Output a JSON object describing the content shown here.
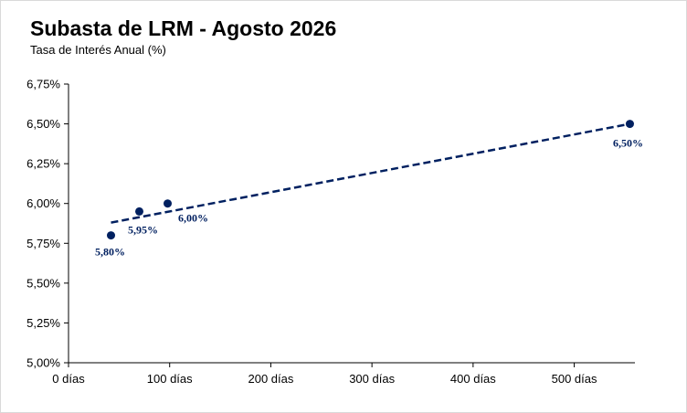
{
  "chart_data": {
    "type": "scatter",
    "title": "Subasta de LRM - Agosto 2026",
    "subtitle": "Tasa de Interés Anual (%)",
    "xlabel": "",
    "ylabel": "",
    "xlim": [
      0,
      560
    ],
    "ylim": [
      5.0,
      6.75
    ],
    "x_ticks": [
      {
        "value": 0,
        "label": "0 días"
      },
      {
        "value": 100,
        "label": "100 días"
      },
      {
        "value": 200,
        "label": "200 días"
      },
      {
        "value": 300,
        "label": "300 días"
      },
      {
        "value": 400,
        "label": "400 días"
      },
      {
        "value": 500,
        "label": "500 días"
      }
    ],
    "y_ticks": [
      {
        "value": 5.0,
        "label": "5,00%"
      },
      {
        "value": 5.25,
        "label": "5,25%"
      },
      {
        "value": 5.5,
        "label": "5,50%"
      },
      {
        "value": 5.75,
        "label": "5,75%"
      },
      {
        "value": 6.0,
        "label": "6,00%"
      },
      {
        "value": 6.25,
        "label": "6,25%"
      },
      {
        "value": 6.5,
        "label": "6,50%"
      },
      {
        "value": 6.75,
        "label": "6,75%"
      }
    ],
    "grid": false,
    "points": [
      {
        "x": 42,
        "y": 5.8,
        "label": "5,80%"
      },
      {
        "x": 70,
        "y": 5.95,
        "label": "5,95%"
      },
      {
        "x": 98,
        "y": 6.0,
        "label": "6,00%"
      },
      {
        "x": 555,
        "y": 6.5,
        "label": "6,50%"
      }
    ],
    "trendline": {
      "style": "dashed",
      "from": {
        "x": 42,
        "y": 5.88
      },
      "to": {
        "x": 555,
        "y": 6.5
      }
    },
    "colors": {
      "points": "#002060",
      "trendline": "#002060",
      "axis": "#000000"
    }
  }
}
